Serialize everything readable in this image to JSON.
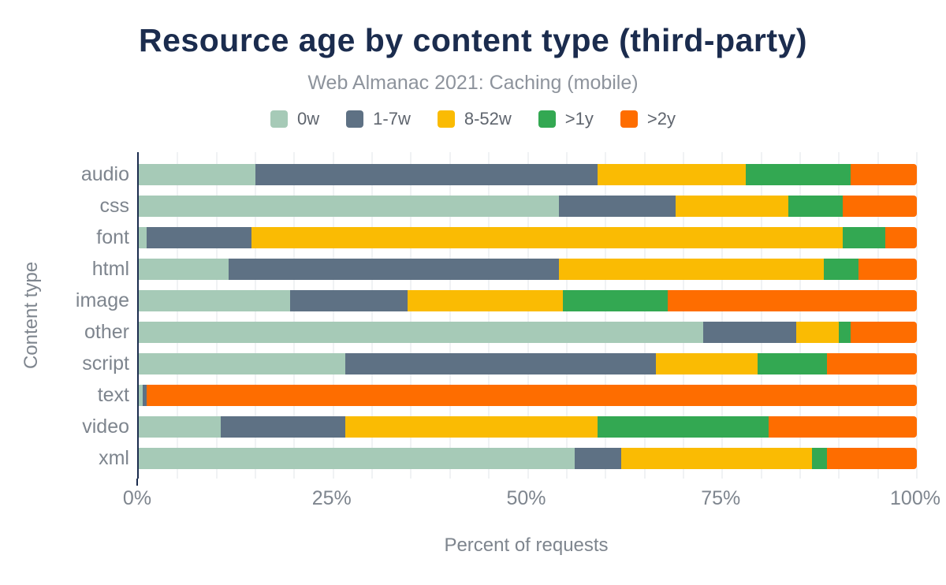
{
  "title": "Resource age by content type (third-party)",
  "subtitle": "Web Almanac 2021: Caching (mobile)",
  "colors": {
    "title_text": "#1b2c4e",
    "subtitle_text": "#8d939c",
    "axis_text": "#7e858e",
    "axis_line": "#1b2c4e",
    "gridline": "#f0f2f4",
    "background": "#ffffff"
  },
  "chart_data": {
    "type": "bar",
    "orientation": "horizontal",
    "stacked": true,
    "title": "Resource age by content type (third-party)",
    "subtitle": "Web Almanac 2021: Caching (mobile)",
    "xlabel": "Percent of requests",
    "ylabel": "Content type",
    "xlim": [
      0,
      100
    ],
    "x_tick_labels": [
      "0%",
      "25%",
      "50%",
      "75%",
      "100%"
    ],
    "x_tick_values": [
      0,
      25,
      50,
      75,
      100
    ],
    "grid": true,
    "grid_step": 5,
    "legend_position": "top",
    "categories": [
      "audio",
      "css",
      "font",
      "html",
      "image",
      "other",
      "script",
      "text",
      "video",
      "xml"
    ],
    "series": [
      {
        "name": "0w",
        "color": "#a6cab7",
        "values": [
          15,
          54,
          1,
          11.5,
          19.5,
          72.5,
          26.5,
          0.5,
          10.5,
          56
        ]
      },
      {
        "name": "1-7w",
        "color": "#5e7184",
        "values": [
          44,
          15,
          13.5,
          42.5,
          15,
          12,
          40,
          0.5,
          16,
          6
        ]
      },
      {
        "name": "8-52w",
        "color": "#fabb03",
        "values": [
          19,
          14.5,
          76,
          34,
          20,
          5.5,
          13,
          0,
          32.5,
          24.5
        ]
      },
      {
        "name": ">1y",
        "color": "#33a852",
        "values": [
          13.5,
          7,
          5.5,
          4.5,
          13.5,
          1.5,
          9,
          0,
          22,
          2
        ]
      },
      {
        "name": ">2y",
        "color": "#fe6d00",
        "values": [
          8.5,
          9.5,
          4,
          7.5,
          32,
          8.5,
          11.5,
          99,
          19,
          11.5
        ]
      }
    ]
  }
}
